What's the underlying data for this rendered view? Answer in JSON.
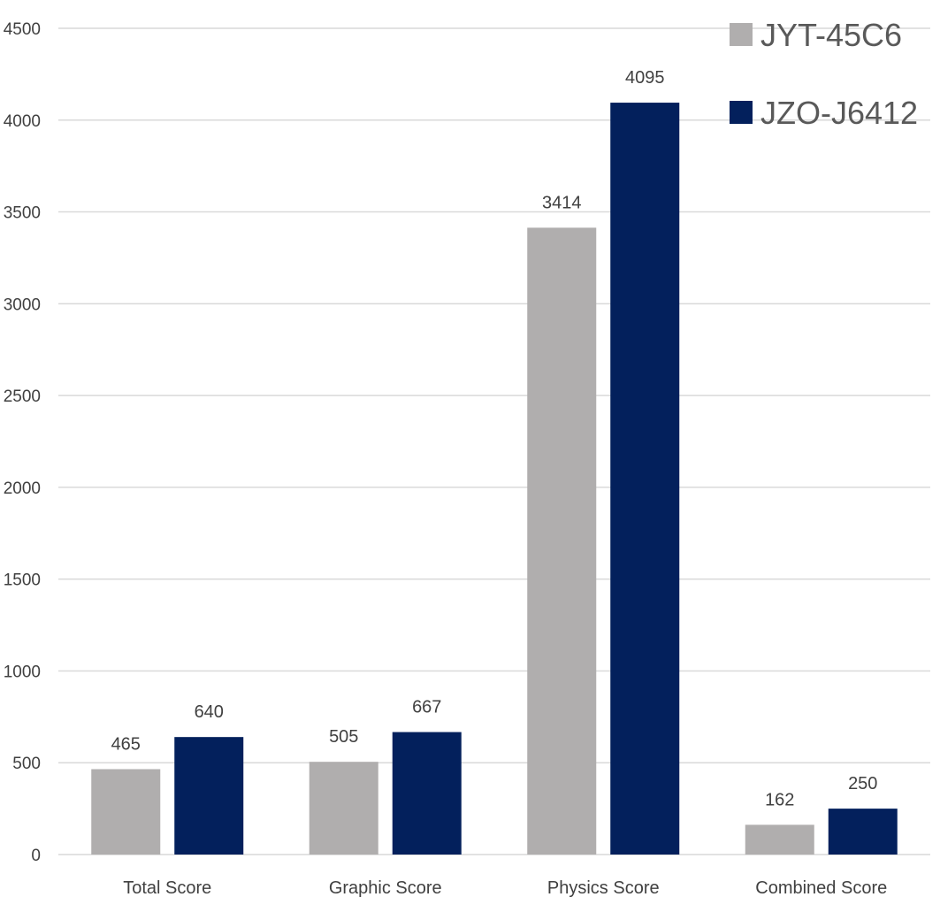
{
  "chart_data": {
    "type": "bar",
    "categories": [
      "Total Score",
      "Graphic Score",
      "Physics Score",
      "Combined Score"
    ],
    "series": [
      {
        "name": "JYT-45C6",
        "color": "#b0aeae",
        "values": [
          465,
          505,
          3414,
          162
        ]
      },
      {
        "name": "JZO-J6412",
        "color": "#03205c",
        "values": [
          640,
          667,
          4095,
          250
        ]
      }
    ],
    "ylim": [
      0,
      4500
    ],
    "yticks": [
      "0",
      "500",
      "1000",
      "1500",
      "2000",
      "2500",
      "3000",
      "3500",
      "4000",
      "4500"
    ],
    "grid": true,
    "legend_position": "top-right",
    "data_labels": true
  }
}
